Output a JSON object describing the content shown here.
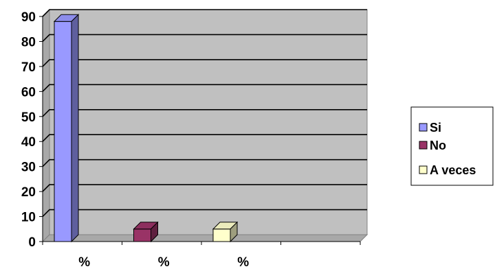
{
  "chart_data": {
    "type": "bar",
    "categories": [
      "%",
      "%",
      "%"
    ],
    "series": [
      {
        "name": "Si",
        "values": [
          88,
          0,
          0
        ],
        "color": "#9999FF"
      },
      {
        "name": "No",
        "values": [
          0,
          5,
          0
        ],
        "color": "#993366"
      },
      {
        "name": "A veces",
        "values": [
          0,
          0,
          5
        ],
        "color": "#FFFFCC"
      }
    ],
    "title": "",
    "xlabel": "",
    "ylabel": "",
    "ylim": [
      0,
      90
    ],
    "yticks": [
      0,
      10,
      20,
      30,
      40,
      50,
      60,
      70,
      80,
      90
    ],
    "grid": true,
    "legend_position": "right",
    "plot_background": "#C0C0C0"
  }
}
